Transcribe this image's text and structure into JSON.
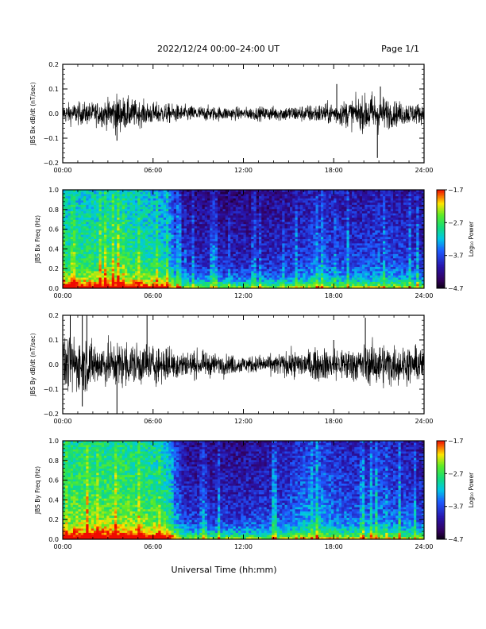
{
  "header": {
    "title": "2022/12/24  00:00–24:00 UT",
    "page": "Page 1/1"
  },
  "chart_data": [
    {
      "type": "line",
      "ylabel": "JBS Bx dB/dt (nT/sec)",
      "xlim": [
        0,
        24
      ],
      "ylim": [
        -0.2,
        0.2
      ],
      "yticks": [
        "0.2",
        "0.1",
        "0.0",
        "−0.1",
        "−0.2"
      ],
      "xticks": [
        "00:00",
        "06:00",
        "12:00",
        "18:00",
        "24:00"
      ],
      "series": [
        {
          "x": [
            0,
            1,
            2,
            3,
            3.5,
            4,
            5,
            6,
            7,
            8,
            9,
            10,
            11,
            12,
            13,
            14,
            15,
            16,
            17,
            18,
            19,
            20,
            20.5,
            21,
            22,
            23,
            24
          ],
          "amplitude": [
            0.035,
            0.04,
            0.04,
            0.05,
            0.07,
            0.06,
            0.045,
            0.04,
            0.035,
            0.03,
            0.028,
            0.026,
            0.024,
            0.022,
            0.024,
            0.026,
            0.028,
            0.03,
            0.035,
            0.04,
            0.05,
            0.06,
            0.08,
            0.07,
            0.045,
            0.04,
            0.035
          ],
          "spikes": [
            {
              "x": 3.6,
              "y": -0.11
            },
            {
              "x": 20.9,
              "y": -0.18
            },
            {
              "x": 18.2,
              "y": 0.12
            },
            {
              "x": 21.1,
              "y": 0.11
            }
          ]
        }
      ]
    },
    {
      "type": "heatmap",
      "ylabel": "JBS Bx Freq (Hz)",
      "xlim": [
        0,
        24
      ],
      "ylim": [
        0,
        1.0
      ],
      "yticks": [
        "1.0",
        "0.8",
        "0.6",
        "0.4",
        "0.2",
        "0.0"
      ],
      "xticks": [
        "00:00",
        "06:00",
        "12:00",
        "18:00",
        "24:00"
      ],
      "colorbar": {
        "label": "Log₁₀ Power",
        "ticks": [
          "−1.7",
          "−2.7",
          "−3.7",
          "−4.7"
        ],
        "range": [
          -4.7,
          -1.7
        ]
      },
      "activity_by_hour": [
        0.62,
        0.63,
        0.64,
        0.66,
        0.66,
        0.63,
        0.6,
        0.55,
        0.28,
        0.27,
        0.27,
        0.26,
        0.26,
        0.26,
        0.28,
        0.3,
        0.33,
        0.38,
        0.34,
        0.32,
        0.33,
        0.36,
        0.34,
        0.32,
        0.31
      ],
      "sharp_transition_hour": 7.3
    },
    {
      "type": "line",
      "ylabel": "JBS By dB/dt (nT/sec)",
      "xlim": [
        0,
        24
      ],
      "ylim": [
        -0.2,
        0.2
      ],
      "yticks": [
        "0.2",
        "0.1",
        "0.0",
        "−0.1",
        "−0.2"
      ],
      "xticks": [
        "00:00",
        "06:00",
        "12:00",
        "18:00",
        "24:00"
      ],
      "series": [
        {
          "x": [
            0,
            1,
            2,
            3,
            4,
            5,
            6,
            7,
            8,
            9,
            10,
            11,
            12,
            13,
            14,
            15,
            16,
            17,
            18,
            19,
            20,
            21,
            22,
            23,
            24
          ],
          "amplitude": [
            0.09,
            0.1,
            0.085,
            0.08,
            0.08,
            0.075,
            0.07,
            0.065,
            0.05,
            0.045,
            0.04,
            0.035,
            0.03,
            0.032,
            0.035,
            0.045,
            0.05,
            0.055,
            0.06,
            0.06,
            0.065,
            0.08,
            0.07,
            0.065,
            0.06
          ],
          "spikes": [
            {
              "x": 0.5,
              "y": 0.2
            },
            {
              "x": 1.3,
              "y": 0.2
            },
            {
              "x": 1.6,
              "y": 0.2
            },
            {
              "x": 5.6,
              "y": 0.2
            },
            {
              "x": 3.6,
              "y": -0.2
            },
            {
              "x": 1.3,
              "y": -0.17
            },
            {
              "x": 20.1,
              "y": 0.19
            },
            {
              "x": 18.0,
              "y": 0.1
            }
          ]
        }
      ]
    },
    {
      "type": "heatmap",
      "ylabel": "JBS By Freq (Hz)",
      "xlim": [
        0,
        24
      ],
      "ylim": [
        0,
        1.0
      ],
      "yticks": [
        "1.0",
        "0.8",
        "0.6",
        "0.4",
        "0.2",
        "0.0"
      ],
      "xticks": [
        "00:00",
        "06:00",
        "12:00",
        "18:00",
        "24:00"
      ],
      "colorbar": {
        "label": "Log₁₀ Power",
        "ticks": [
          "−1.7",
          "−2.7",
          "−3.7",
          "−4.7"
        ],
        "range": [
          -4.7,
          -1.7
        ]
      },
      "activity_by_hour": [
        0.7,
        0.72,
        0.72,
        0.72,
        0.72,
        0.7,
        0.68,
        0.62,
        0.3,
        0.28,
        0.28,
        0.28,
        0.28,
        0.3,
        0.32,
        0.35,
        0.42,
        0.45,
        0.38,
        0.36,
        0.36,
        0.4,
        0.36,
        0.34,
        0.32
      ],
      "sharp_transition_hour": 7.3
    }
  ],
  "xaxis_label": "Universal Time (hh:mm)"
}
